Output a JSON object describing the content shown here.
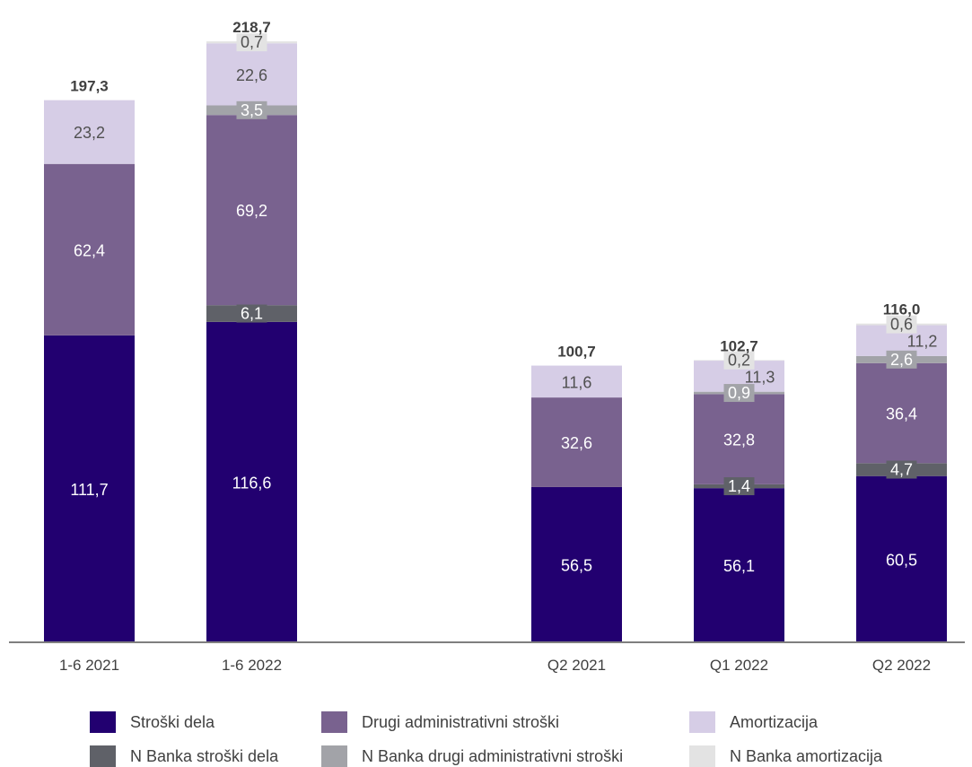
{
  "chart_data": {
    "type": "bar",
    "stacked": true,
    "categories": [
      "1-6 2021",
      "1-6 2022",
      "Q2 2021",
      "Q1 2022",
      "Q2 2022"
    ],
    "totals": [
      "197,3",
      "218,7",
      "100,7",
      "102,7",
      "116,0"
    ],
    "series": [
      {
        "name": "Stroški dela",
        "color": "#220070",
        "values": [
          111.7,
          116.6,
          56.5,
          56.1,
          60.5
        ],
        "labels": [
          "111,7",
          "116,6",
          "56,5",
          "56,1",
          "60,5"
        ]
      },
      {
        "name": "N Banka stroški dela",
        "color": "#5f6168",
        "values": [
          0,
          6.1,
          0,
          1.4,
          4.7
        ],
        "labels": [
          "",
          "6,1",
          "",
          "1,4",
          "4,7"
        ]
      },
      {
        "name": "Drugi administrativni stroški",
        "color": "#79628f",
        "values": [
          62.4,
          69.2,
          32.6,
          32.8,
          36.4
        ],
        "labels": [
          "62,4",
          "69,2",
          "32,6",
          "32,8",
          "36,4"
        ]
      },
      {
        "name": "N Banka drugi administrativni stroški",
        "color": "#a2a3a8",
        "values": [
          0,
          3.5,
          0,
          0.9,
          2.6
        ],
        "labels": [
          "",
          "3,5",
          "",
          "0,9",
          "2,6"
        ]
      },
      {
        "name": "Amortizacija",
        "color": "#d6cde6",
        "values": [
          23.2,
          22.6,
          11.6,
          11.3,
          11.2
        ],
        "labels": [
          "23,2",
          "22,6",
          "11,6",
          "11,3",
          "11,2"
        ]
      },
      {
        "name": "N Banka amortizacija",
        "color": "#e3e3e3",
        "values": [
          0,
          0.7,
          0,
          0.2,
          0.6
        ],
        "labels": [
          "",
          "0,7",
          "",
          "0,2",
          "0,6"
        ]
      }
    ],
    "legend_order": [
      0,
      2,
      4,
      1,
      3,
      5
    ],
    "legend_position": "bottom",
    "grid": false,
    "ylim": [
      0,
      225
    ]
  }
}
